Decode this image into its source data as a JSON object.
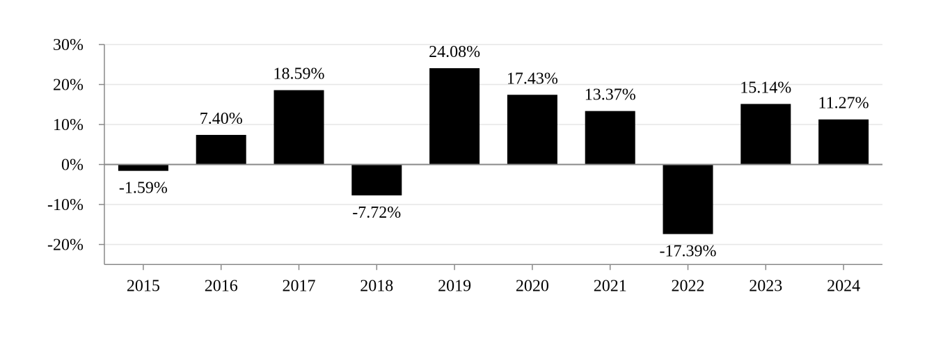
{
  "chart_data": {
    "type": "bar",
    "title": "",
    "xlabel": "",
    "ylabel": "",
    "categories": [
      "2015",
      "2016",
      "2017",
      "2018",
      "2019",
      "2020",
      "2021",
      "2022",
      "2023",
      "2024"
    ],
    "values": [
      -1.59,
      7.4,
      18.59,
      -7.72,
      24.08,
      17.43,
      13.37,
      -17.39,
      15.14,
      11.27
    ],
    "data_labels": [
      "-1.59%",
      "7.40%",
      "18.59%",
      "-7.72%",
      "24.08%",
      "17.43%",
      "13.37%",
      "-17.39%",
      "15.14%",
      "11.27%"
    ],
    "ylim": [
      -25,
      30
    ],
    "y_ticks": [
      30,
      20,
      10,
      0,
      -10,
      -20
    ],
    "y_tick_labels": [
      "30%",
      "20%",
      "10%",
      "0%",
      "-10%",
      "-20%"
    ],
    "grid": true,
    "legend": "none",
    "colors": {
      "bar": "#000000",
      "grid": "#e6e6e6",
      "axis": "#888888"
    }
  }
}
